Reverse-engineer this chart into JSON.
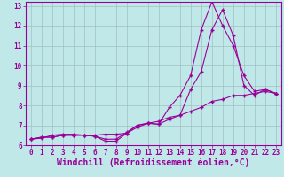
{
  "title": "",
  "xlabel": "Windchill (Refroidissement éolien,°C)",
  "ylabel": "",
  "background_color": "#c0e8e8",
  "line_color": "#990099",
  "xlim": [
    -0.5,
    23.5
  ],
  "ylim": [
    6.0,
    13.2
  ],
  "yticks": [
    6,
    7,
    8,
    9,
    10,
    11,
    12,
    13
  ],
  "xticks": [
    0,
    1,
    2,
    3,
    4,
    5,
    6,
    7,
    8,
    9,
    10,
    11,
    12,
    13,
    14,
    15,
    16,
    17,
    18,
    19,
    20,
    21,
    22,
    23
  ],
  "series": [
    [
      6.3,
      6.4,
      6.4,
      6.5,
      6.5,
      6.5,
      6.45,
      6.2,
      6.2,
      6.6,
      7.0,
      7.1,
      7.05,
      7.9,
      8.5,
      9.5,
      11.8,
      13.2,
      12.0,
      11.0,
      9.5,
      8.7,
      8.8,
      8.6
    ],
    [
      6.3,
      6.4,
      6.4,
      6.5,
      6.5,
      6.5,
      6.45,
      6.3,
      6.3,
      6.65,
      7.0,
      7.1,
      7.05,
      7.3,
      7.5,
      8.8,
      9.7,
      11.8,
      12.8,
      11.5,
      9.0,
      8.5,
      8.8,
      8.6
    ],
    [
      6.3,
      6.35,
      6.5,
      6.55,
      6.55,
      6.5,
      6.5,
      6.55,
      6.55,
      6.6,
      6.9,
      7.1,
      7.2,
      7.4,
      7.5,
      7.7,
      7.9,
      8.2,
      8.3,
      8.5,
      8.5,
      8.6,
      8.7,
      8.6
    ]
  ],
  "grid_color": "#a0c0c0",
  "tick_label_fontsize": 5.5,
  "xlabel_fontsize": 7.0
}
